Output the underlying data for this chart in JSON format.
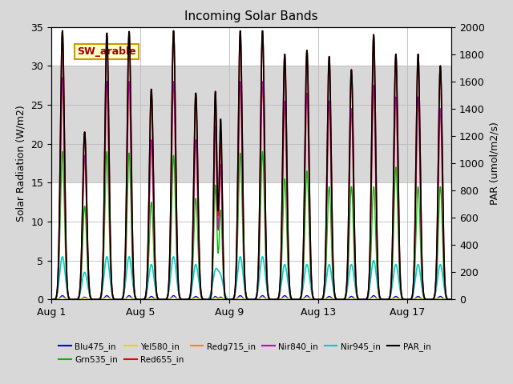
{
  "title": "Incoming Solar Bands",
  "ylabel_left": "Solar Radiation (W/m2)",
  "ylabel_right": "PAR (umol/m2/s)",
  "ylim_left": [
    0,
    35
  ],
  "ylim_right": [
    0,
    2000
  ],
  "yticks_left": [
    0,
    5,
    10,
    15,
    20,
    25,
    30,
    35
  ],
  "yticks_right": [
    0,
    200,
    400,
    600,
    800,
    1000,
    1200,
    1400,
    1600,
    1800,
    2000
  ],
  "annotation_text": "SW_arable",
  "fig_bg": "#d8d8d8",
  "plot_bg": "#ffffff",
  "shaded_band": [
    15,
    30
  ],
  "shaded_color": "#d8d8d8",
  "n_days": 18,
  "peak_sigma": 0.09,
  "peak_sigma_nir": 0.12,
  "peak_heights_red": [
    34.5,
    21.5,
    34.2,
    34.4,
    27.0,
    34.5,
    26.5,
    24.5,
    34.5,
    34.5,
    31.5,
    32.0,
    31.2,
    29.5,
    34.0,
    31.5,
    31.5,
    30.0
  ],
  "peak_heights_green": [
    19.0,
    12.0,
    19.0,
    18.8,
    12.5,
    18.5,
    13.0,
    10.0,
    18.8,
    19.0,
    15.5,
    16.5,
    14.5,
    14.5,
    14.5,
    17.0,
    14.5,
    14.5
  ],
  "peak_heights_blue": [
    0.5,
    0.3,
    0.5,
    0.5,
    0.4,
    0.5,
    0.4,
    0.3,
    0.5,
    0.5,
    0.5,
    0.5,
    0.4,
    0.4,
    0.5,
    0.4,
    0.4,
    0.4
  ],
  "peak_heights_yel": [
    0.3,
    0.2,
    0.3,
    0.3,
    0.2,
    0.3,
    0.2,
    0.2,
    0.3,
    0.3,
    0.3,
    0.3,
    0.2,
    0.2,
    0.3,
    0.2,
    0.2,
    0.2
  ],
  "peak_heights_redg": [
    28.0,
    18.0,
    27.5,
    27.5,
    20.0,
    27.5,
    20.0,
    15.5,
    27.5,
    27.5,
    25.0,
    26.0,
    25.0,
    24.0,
    27.0,
    25.5,
    25.5,
    24.0
  ],
  "peak_heights_nir840": [
    28.5,
    18.5,
    28.0,
    28.0,
    20.5,
    28.0,
    20.5,
    16.0,
    28.0,
    28.0,
    25.5,
    26.5,
    25.5,
    24.5,
    27.5,
    26.0,
    26.0,
    24.5
  ],
  "peak_heights_nir945": [
    5.5,
    3.5,
    5.5,
    5.5,
    4.5,
    5.5,
    4.5,
    4.0,
    5.5,
    5.5,
    4.5,
    4.5,
    4.5,
    4.5,
    5.0,
    4.5,
    4.5,
    4.5
  ],
  "par_factor": 57.14,
  "cloud_day": 7,
  "cloud_peak_red": 26.7,
  "cloud_peak_nir840": 21.0,
  "cloud_peak_nir945": 3.5,
  "par_cloud_peak": 1520,
  "par_cloud2_peak": 1320,
  "x_tick_days": [
    0,
    4,
    8,
    12,
    16
  ],
  "x_tick_labels": [
    "Aug 1",
    "Aug 5",
    "Aug 9",
    "Aug 13",
    "Aug 17"
  ],
  "grid_color": "#bbbbbb",
  "legend_items": [
    {
      "label": "Blu475_in",
      "color": "#0000ee"
    },
    {
      "label": "Grn535_in",
      "color": "#00bb00"
    },
    {
      "label": "Yel580_in",
      "color": "#dddd00"
    },
    {
      "label": "Red655_in",
      "color": "#ee0000"
    },
    {
      "label": "Redg715_in",
      "color": "#ff8800"
    },
    {
      "label": "Nir840_in",
      "color": "#cc00cc"
    },
    {
      "label": "Nir945_in",
      "color": "#00cccc"
    },
    {
      "label": "PAR_in",
      "color": "#000000"
    }
  ]
}
